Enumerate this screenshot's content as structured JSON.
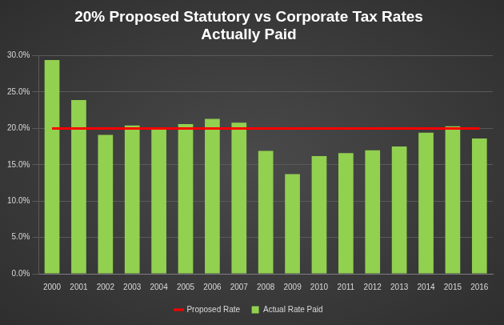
{
  "chart_data": {
    "type": "bar",
    "title": [
      "20% Proposed Statutory vs Corporate Tax Rates",
      "Actually Paid"
    ],
    "categories": [
      "2000",
      "2001",
      "2002",
      "2003",
      "2004",
      "2005",
      "2006",
      "2007",
      "2008",
      "2009",
      "2010",
      "2011",
      "2012",
      "2013",
      "2014",
      "2015",
      "2016"
    ],
    "series": [
      {
        "name": "Actual Rate Paid",
        "type": "bar",
        "color": "#92d050",
        "values": [
          29.4,
          23.9,
          19.1,
          20.4,
          19.9,
          20.6,
          21.3,
          20.8,
          16.9,
          13.7,
          16.2,
          16.6,
          17.0,
          17.5,
          19.4,
          20.3,
          18.6
        ]
      },
      {
        "name": "Proposed Rate",
        "type": "line",
        "color": "#ff0000",
        "values": [
          20,
          20,
          20,
          20,
          20,
          20,
          20,
          20,
          20,
          20,
          20,
          20,
          20,
          20,
          20,
          20,
          20
        ]
      }
    ],
    "ylim": [
      0,
      30
    ],
    "yticks": [
      {
        "value": 0,
        "label": "0.0%"
      },
      {
        "value": 5,
        "label": "5.0%"
      },
      {
        "value": 10,
        "label": "10.0%"
      },
      {
        "value": 15,
        "label": "15.0%"
      },
      {
        "value": 20,
        "label": "20.0%"
      },
      {
        "value": 25,
        "label": "25.0%"
      },
      {
        "value": 30,
        "label": "30.0%"
      }
    ],
    "grid": true,
    "legend": "bottom"
  }
}
